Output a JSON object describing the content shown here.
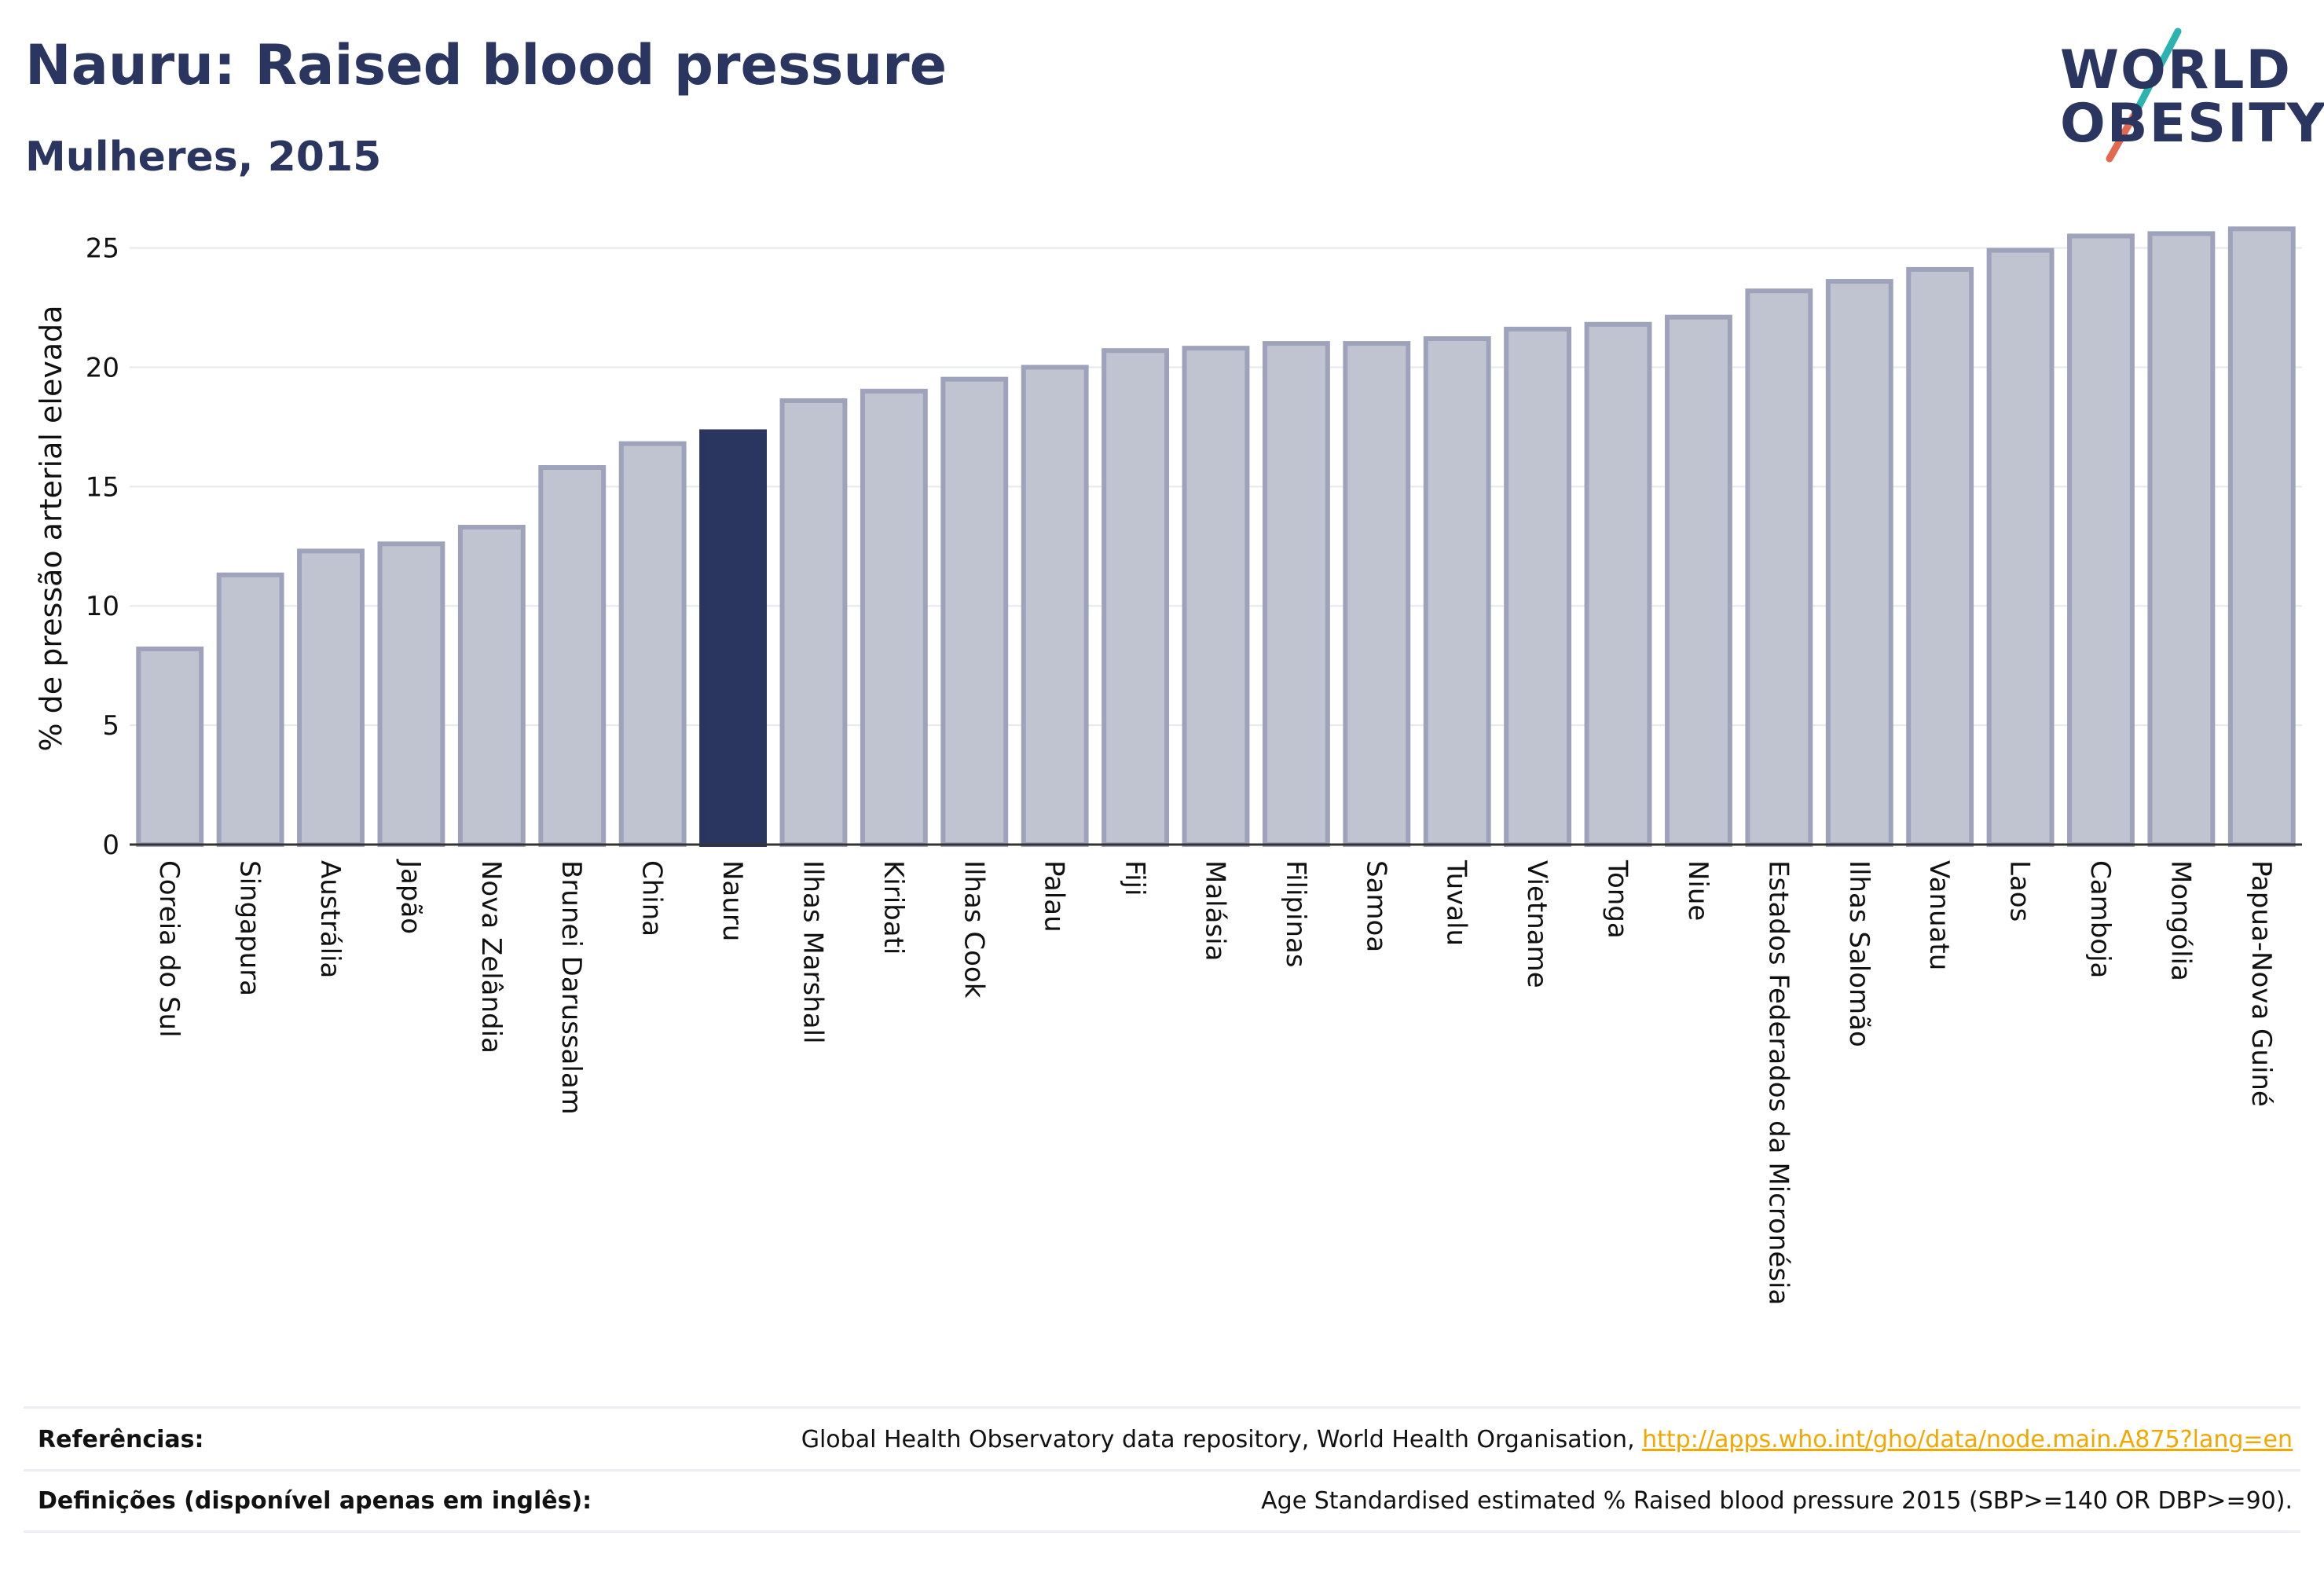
{
  "header": {
    "title": "Nauru: Raised blood pressure",
    "subtitle": "Mulheres, 2015"
  },
  "logo": {
    "line1": "WORLD",
    "line2": "OBESITY",
    "accent_teal": "#2bb3b1",
    "accent_red": "#e4674f"
  },
  "chart_data": {
    "type": "bar",
    "ylabel": "% de pressão arterial elevada",
    "ylim": [
      0,
      26.5
    ],
    "yticks": [
      0,
      5,
      10,
      15,
      20,
      25
    ],
    "grid": true,
    "highlight": "Nauru",
    "colors": {
      "bar": "#c0c3d0",
      "bar_edge": "#9ea3bb",
      "highlight": "#2a3560"
    },
    "categories": [
      "Coreia do Sul",
      "Singapura",
      "Austrália",
      "Japão",
      "Nova Zelândia",
      "Brunei Darussalam",
      "China",
      "Nauru",
      "Ilhas Marshall",
      "Kiribati",
      "Ilhas Cook",
      "Palau",
      "Fiji",
      "Malásia",
      "Filipinas",
      "Samoa",
      "Tuvalu",
      "Vietname",
      "Tonga",
      "Niue",
      "Estados Federados da Micronésia",
      "Ilhas Salomão",
      "Vanuatu",
      "Laos",
      "Camboja",
      "Mongólia",
      "Papua-Nova Guiné"
    ],
    "values": [
      8.2,
      11.3,
      12.3,
      12.6,
      13.3,
      15.8,
      16.8,
      17.3,
      18.6,
      19.0,
      19.5,
      20.0,
      20.7,
      20.8,
      21.0,
      21.0,
      21.2,
      21.6,
      21.8,
      22.1,
      23.2,
      23.6,
      24.1,
      24.9,
      25.5,
      25.6,
      25.8
    ]
  },
  "references": {
    "label": "Referências:",
    "text": "Global Health Observatory data repository, World Health Organisation, ",
    "link": "http://apps.who.int/gho/data/node.main.A875?lang=en"
  },
  "definitions": {
    "label": "Definições (disponível apenas em inglês):",
    "text": "Age Standardised estimated % Raised blood pressure 2015 (SBP>=140 OR DBP>=90)."
  }
}
